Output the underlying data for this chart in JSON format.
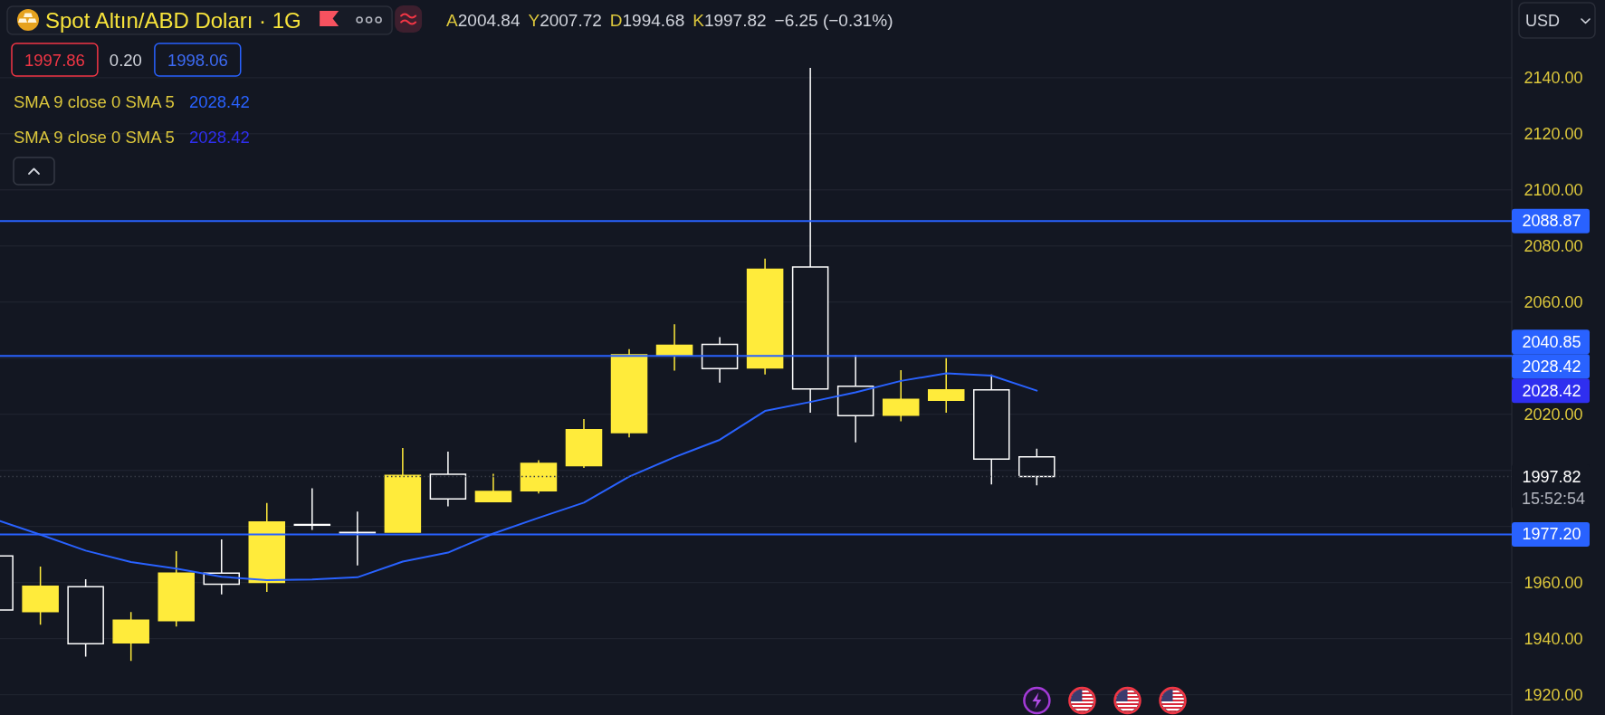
{
  "chart_data": {
    "type": "candlestick",
    "title": "Spot Altın/ABD Doları · 1G",
    "categories": [
      null,
      null,
      null,
      null,
      null,
      null,
      null,
      null,
      null,
      null,
      null,
      null,
      null,
      null,
      null,
      null,
      null,
      null,
      null,
      null,
      null,
      null,
      null,
      null
    ],
    "ohlc": [
      [
        1969.5,
        1969.5,
        1950.2,
        1950.2
      ],
      [
        1949.7,
        1965.7,
        1945.0,
        1958.7
      ],
      [
        1958.5,
        1961.2,
        1933.6,
        1938.2
      ],
      [
        1938.5,
        1949.5,
        1932.1,
        1946.6
      ],
      [
        1946.4,
        1971.2,
        1944.3,
        1963.4
      ],
      [
        1963.4,
        1975.4,
        1955.8,
        1959.4
      ],
      [
        1960.1,
        1988.4,
        1956.7,
        1981.6
      ],
      [
        1980.7,
        1993.6,
        1978.8,
        1980.5
      ],
      [
        1977.9,
        1985.3,
        1966.1,
        1977.7
      ],
      [
        1978.0,
        2008.0,
        1978.0,
        1998.2
      ],
      [
        1998.6,
        2006.7,
        1987.2,
        1989.8
      ],
      [
        1988.9,
        1998.8,
        1988.9,
        1992.5
      ],
      [
        1992.7,
        2003.6,
        1991.8,
        2002.5
      ],
      [
        2001.7,
        2018.3,
        2000.9,
        2014.5
      ],
      [
        2013.5,
        2043.2,
        2011.8,
        2041.2
      ],
      [
        2040.9,
        2052.1,
        2035.6,
        2044.6
      ],
      [
        2044.9,
        2047.5,
        2031.3,
        2036.3
      ],
      [
        2036.5,
        2075.5,
        2034.2,
        2071.7
      ],
      [
        2072.5,
        2143.5,
        2020.6,
        2029.0
      ],
      [
        2030.0,
        2041.1,
        2010.0,
        2019.5
      ],
      [
        2019.7,
        2035.7,
        2017.5,
        2025.3
      ],
      [
        2025.0,
        2040.0,
        2020.6,
        2028.7
      ],
      [
        2028.7,
        2034.2,
        1995.0,
        2004.0
      ],
      [
        2004.84,
        2007.72,
        1994.68,
        1997.82
      ]
    ],
    "colors": [
      "#ffffff",
      "#ffeb3b",
      "#ffffff",
      "#ffeb3b",
      "#ffeb3b",
      "#ffffff",
      "#ffeb3b",
      "#ffffff",
      "#ffffff",
      "#ffeb3b",
      "#ffffff",
      "#ffeb3b",
      "#ffeb3b",
      "#ffeb3b",
      "#ffeb3b",
      "#ffeb3b",
      "#ffffff",
      "#ffeb3b",
      "#ffffff",
      "#ffffff",
      "#ffeb3b",
      "#ffeb3b",
      "#ffffff",
      "#ffffff"
    ],
    "series": [
      {
        "type": "line",
        "color": "#2962ff",
        "values": [
          1982.5,
          1977.1,
          1971.4,
          1967.3,
          1965.0,
          1962.1,
          1960.9,
          1961.1,
          1961.9,
          1967.5,
          1970.7,
          1977.5,
          1983.1,
          1988.5,
          1997.8,
          2004.7,
          2010.9,
          2021.2,
          2024.4,
          2027.8,
          2031.9,
          2034.6,
          2033.8,
          2028.42
        ]
      }
    ],
    "ylim": [
      1912.8,
      2167.7
    ],
    "yticks": [
      {
        "value": 2140,
        "label": "2140.00"
      },
      {
        "value": 2120,
        "label": "2120.00"
      },
      {
        "value": 2100,
        "label": "2100.00"
      },
      {
        "value": 2080,
        "label": "2080.00"
      },
      {
        "value": 2060,
        "label": "2060.00"
      },
      {
        "value": 2040,
        "label": null
      },
      {
        "value": 2020,
        "label": "2020.00"
      },
      {
        "value": 2000,
        "label": null
      },
      {
        "value": 1980,
        "label": null
      },
      {
        "value": 1960,
        "label": "1960.00"
      },
      {
        "value": 1940,
        "label": "1940.00"
      },
      {
        "value": 1920,
        "label": "1920.00"
      }
    ],
    "tick_labels": "y",
    "grid": "y",
    "ref_lines": [
      {
        "axis": "y",
        "value": 2088.87,
        "label": "2088.87",
        "color": "#2962ff"
      },
      {
        "axis": "y",
        "value": 2040.85,
        "label": "2040.85",
        "color": "#2962ff"
      },
      {
        "axis": "y",
        "value": 1977.2,
        "label": "1977.20",
        "color": "#2962ff"
      },
      {
        "axis": "y",
        "value": 1997.82,
        "label": "1997.82",
        "color": "#363a45",
        "line_style": "dotted"
      }
    ],
    "annotations": [
      "A2004.84",
      "Y2007.72",
      "D1994.68",
      "K1997.82",
      "−6.25 (−0.31%)",
      "1997.86",
      "0.20",
      "1998.06",
      "SMA 9 close 0 SMA 5",
      "2028.42",
      "SMA 9 close 0 SMA 5",
      "2028.42",
      "2028.42",
      "2028.42",
      "15:52:54",
      "USD"
    ]
  }
}
